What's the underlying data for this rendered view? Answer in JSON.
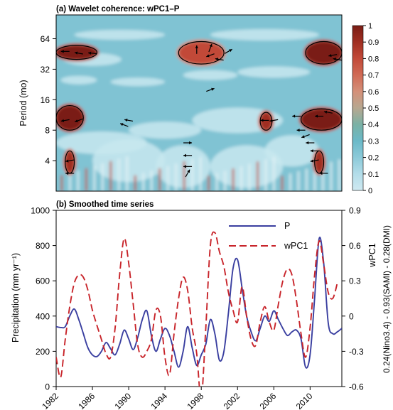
{
  "panel_a": {
    "title": "(a) Wavelet coherence: wPC1–P",
    "ylabel": "Period (mo)",
    "yticks": [
      "4",
      "8",
      "16",
      "32",
      "64"
    ],
    "colorbar": {
      "ticks": [
        "0",
        "0.1",
        "0.2",
        "0.3",
        "0.4",
        "0.5",
        "0.6",
        "0.7",
        "0.8",
        "0.9",
        "1"
      ],
      "colors": [
        "#cfe9f1",
        "#b3dde9",
        "#8ccad9",
        "#6bb9c8",
        "#7ab1a5",
        "#b7a790",
        "#d49079",
        "#d06a55",
        "#c24a39",
        "#a02f22",
        "#7a1d15"
      ]
    }
  },
  "panel_b": {
    "title": "(b) Smoothed time series",
    "ylabel_left": "Precipitation (mm yr⁻¹)",
    "ylabel_right_1": "wPC1",
    "ylabel_right_2": "0.24(Nino3.4) - 0.93(SAMI) - 0.28(DMI)",
    "yticks_left": [
      "0",
      "200",
      "400",
      "600",
      "800",
      "1000"
    ],
    "yticks_right": [
      "-0.6",
      "-0.3",
      "0",
      "0.3",
      "0.6",
      "0.9"
    ],
    "xticks": [
      "1982",
      "1986",
      "1990",
      "1994",
      "1998",
      "2002",
      "2006",
      "2010"
    ]
  },
  "chart_data": [
    {
      "type": "heatmap",
      "title": "(a) Wavelet coherence: wPC1–P",
      "ylabel": "Period (mo)",
      "y_scale": "log2",
      "ylim": [
        2,
        110
      ],
      "xlim": [
        1982,
        2013.5
      ],
      "clim": [
        0,
        1
      ],
      "high_coherence_regions": [
        {
          "x": [
            1982,
            1986.5
          ],
          "period": [
            40,
            55
          ],
          "coherence": 0.95
        },
        {
          "x": [
            1982,
            1985
          ],
          "period": [
            8,
            14
          ],
          "coherence": 0.95
        },
        {
          "x": [
            1983,
            1984
          ],
          "period": [
            3,
            5
          ],
          "coherence": 0.9
        },
        {
          "x": [
            1995.5,
            2000.5
          ],
          "period": [
            36,
            60
          ],
          "coherence": 0.8
        },
        {
          "x": [
            2004.5,
            2005.8
          ],
          "period": [
            8,
            12
          ],
          "coherence": 0.85
        },
        {
          "x": [
            2009.5,
            2013.5
          ],
          "period": [
            36,
            60
          ],
          "coherence": 0.95
        },
        {
          "x": [
            2009,
            2013.5
          ],
          "period": [
            8,
            13
          ],
          "coherence": 0.95
        },
        {
          "x": [
            2010.5,
            2011.5
          ],
          "period": [
            3,
            5
          ],
          "coherence": 0.9
        }
      ]
    },
    {
      "type": "line",
      "title": "(b) Smoothed time series",
      "xlabel": "",
      "ylabel": "Precipitation (mm yr⁻¹)",
      "y2label": "wPC1 = 0.24(Nino3.4) - 0.93(SAMI) - 0.28(DMI)",
      "xlim": [
        1982,
        2013.5
      ],
      "ylim": [
        0,
        1000
      ],
      "y2lim": [
        -0.6,
        0.9
      ],
      "legend_position": "top-right",
      "series": [
        {
          "name": "P",
          "axis": "left",
          "color": "#3a3fa0",
          "style": "solid",
          "x": [
            1982,
            1982.5,
            1983,
            1983.5,
            1984,
            1984.5,
            1985,
            1985.5,
            1986,
            1986.5,
            1987,
            1987.5,
            1988,
            1988.5,
            1989,
            1989.5,
            1990,
            1990.5,
            1991,
            1991.5,
            1992,
            1992.5,
            1993,
            1993.5,
            1994,
            1994.5,
            1995,
            1995.5,
            1996,
            1996.5,
            1997,
            1997.5,
            1998,
            1998.5,
            1999,
            1999.5,
            2000,
            2000.5,
            2001,
            2001.5,
            2002,
            2002.5,
            2003,
            2003.5,
            2004,
            2004.5,
            2005,
            2005.5,
            2006,
            2006.5,
            2007,
            2007.5,
            2008,
            2008.5,
            2009,
            2009.5,
            2010,
            2010.5,
            2011,
            2011.5,
            2012,
            2012.5,
            2013,
            2013.5
          ],
          "y": [
            340,
            335,
            340,
            400,
            440,
            380,
            300,
            220,
            180,
            170,
            200,
            250,
            215,
            180,
            240,
            320,
            270,
            210,
            280,
            380,
            430,
            290,
            200,
            270,
            330,
            290,
            200,
            110,
            200,
            340,
            220,
            120,
            180,
            240,
            380,
            300,
            150,
            200,
            420,
            670,
            720,
            560,
            400,
            310,
            260,
            330,
            400,
            370,
            430,
            380,
            330,
            290,
            310,
            320,
            270,
            110,
            180,
            500,
            840,
            700,
            360,
            300,
            310,
            330
          ]
        },
        {
          "name": "wPC1",
          "axis": "right",
          "color": "#c8242a",
          "style": "dashed",
          "x": [
            1982,
            1982.5,
            1983,
            1983.5,
            1984,
            1984.5,
            1985,
            1985.5,
            1986,
            1986.5,
            1987,
            1987.5,
            1988,
            1988.5,
            1989,
            1989.5,
            1990,
            1990.5,
            1991,
            1991.5,
            1992,
            1992.5,
            1993,
            1993.5,
            1994,
            1994.5,
            1995,
            1995.5,
            1996,
            1996.5,
            1997,
            1997.5,
            1998,
            1998.5,
            1999,
            1999.5,
            2000,
            2000.5,
            2001,
            2001.5,
            2002,
            2002.5,
            2003,
            2003.5,
            2004,
            2004.5,
            2005,
            2005.5,
            2006,
            2006.5,
            2007,
            2007.5,
            2008,
            2008.5,
            2009,
            2009.5,
            2010,
            2010.5,
            2011,
            2011.5,
            2012,
            2012.5,
            2013
          ],
          "y": [
            -0.35,
            -0.52,
            -0.2,
            0.08,
            0.28,
            0.35,
            0.33,
            0.22,
            0.05,
            -0.08,
            -0.2,
            -0.32,
            -0.35,
            -0.1,
            0.35,
            0.66,
            0.45,
            0.1,
            -0.25,
            -0.35,
            -0.3,
            -0.2,
            0.05,
            0.0,
            -0.35,
            -0.5,
            -0.15,
            0.15,
            0.33,
            0.22,
            -0.1,
            -0.32,
            -0.7,
            -0.1,
            0.6,
            0.71,
            0.55,
            0.42,
            0.2,
            0.05,
            -0.05,
            0.25,
            0.0,
            -0.2,
            -0.25,
            -0.05,
            0.08,
            -0.05,
            -0.12,
            0.1,
            0.3,
            0.4,
            0.35,
            0.13,
            -0.15,
            -0.35,
            -0.1,
            0.35,
            0.64,
            0.44,
            0.2,
            0.15,
            0.28
          ]
        }
      ]
    }
  ]
}
